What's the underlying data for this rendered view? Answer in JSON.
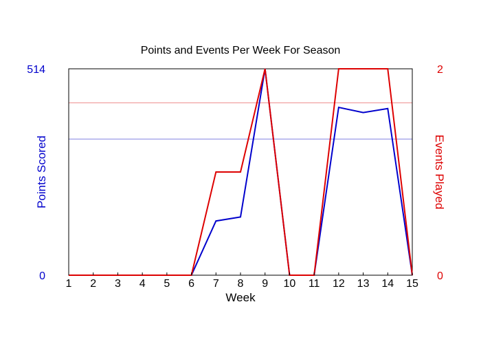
{
  "chart_data": {
    "type": "line",
    "title": "Points and Events Per Week For Season",
    "xlabel": "Week",
    "ylabel_left": "Points Scored",
    "ylabel_right": "Events Played",
    "x": [
      1,
      2,
      3,
      4,
      5,
      6,
      7,
      8,
      9,
      10,
      11,
      12,
      13,
      14,
      15
    ],
    "xlim": [
      1,
      15
    ],
    "ylim_left": [
      0,
      514
    ],
    "ylim_right": [
      0,
      2
    ],
    "left_tick_labels": [
      "0",
      "514"
    ],
    "right_tick_labels": [
      "0",
      "2"
    ],
    "series": [
      {
        "axis": "left",
        "color": "#0000cc",
        "values": [
          0,
          0,
          0,
          0,
          0,
          0,
          135,
          145,
          514,
          0,
          0,
          418,
          405,
          415,
          0
        ]
      },
      {
        "axis": "right",
        "color": "#dd0000",
        "values": [
          0,
          0,
          0,
          0,
          0,
          0,
          1,
          1,
          2,
          0,
          0,
          2,
          2,
          2,
          0
        ]
      }
    ],
    "reference_lines": [
      {
        "axis": "left",
        "value": 339,
        "color": "#8080e0"
      },
      {
        "axis": "right",
        "value": 1.67,
        "color": "#ee9090"
      }
    ],
    "colors": {
      "left_axis": "#0000cc",
      "right_axis": "#dd0000"
    }
  }
}
